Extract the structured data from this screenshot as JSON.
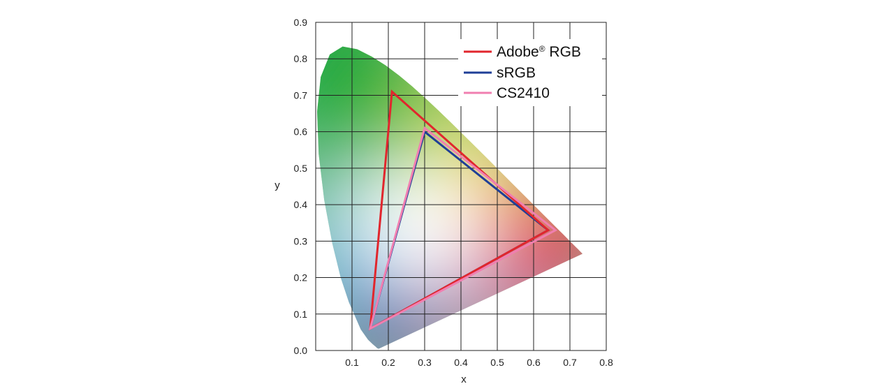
{
  "chart_data": {
    "type": "scatter",
    "title": "",
    "xlabel": "x",
    "ylabel": "y",
    "xlim": [
      0.0,
      0.8
    ],
    "ylim": [
      0.0,
      0.9
    ],
    "grid": true,
    "x_ticks": [
      "0.1",
      "0.2",
      "0.3",
      "0.4",
      "0.5",
      "0.6",
      "0.7",
      "0.8"
    ],
    "y_ticks": [
      "0.0",
      "0.1",
      "0.2",
      "0.3",
      "0.4",
      "0.5",
      "0.6",
      "0.7",
      "0.8",
      "0.9"
    ],
    "legend_position": "top-right",
    "gamut_region": "CIE 1931 spectral locus",
    "series": [
      {
        "name": "Adobe® RGB",
        "color": "#e1262d",
        "points": [
          [
            0.21,
            0.71
          ],
          [
            0.64,
            0.33
          ],
          [
            0.15,
            0.06
          ]
        ]
      },
      {
        "name": "sRGB",
        "color": "#1f3f97",
        "points": [
          [
            0.3,
            0.6
          ],
          [
            0.64,
            0.33
          ],
          [
            0.15,
            0.06
          ]
        ]
      },
      {
        "name": "CS2410",
        "color": "#f07fb0",
        "points": [
          [
            0.3,
            0.61
          ],
          [
            0.66,
            0.33
          ],
          [
            0.15,
            0.06
          ]
        ]
      }
    ],
    "legend": {
      "adobe_main": "Adobe",
      "adobe_reg": "®",
      "adobe_tail": " RGB",
      "srgb": "sRGB",
      "cs": "CS2410"
    }
  }
}
